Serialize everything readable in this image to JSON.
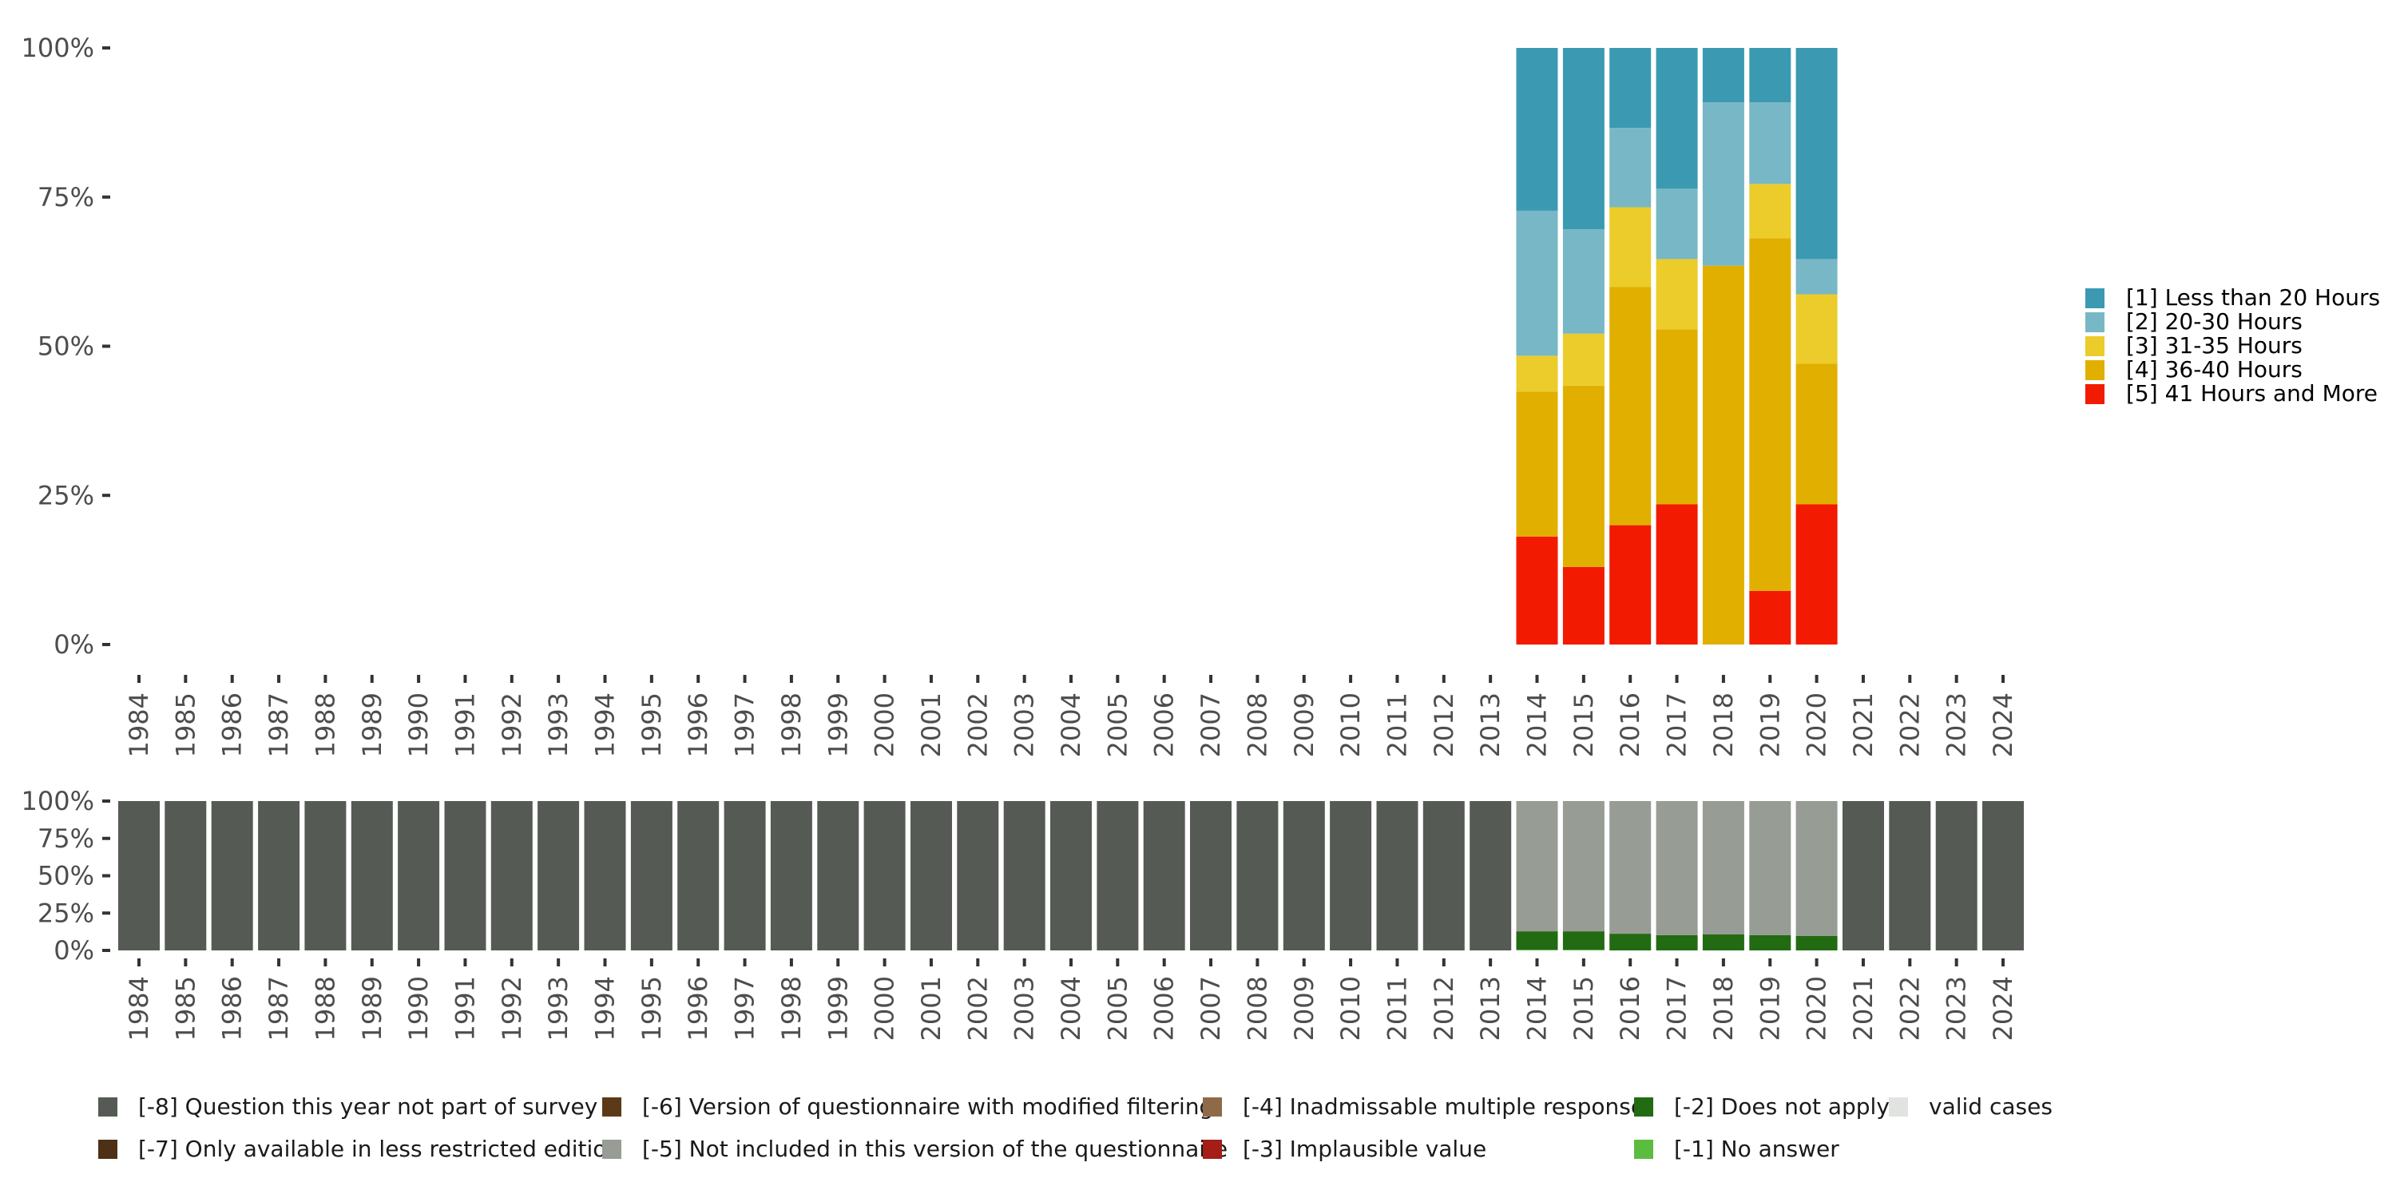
{
  "chart_data": [
    {
      "id": "main",
      "type": "bar",
      "stacked": true,
      "normalized": true,
      "title": "",
      "xlabel": "",
      "ylabel": "",
      "ylim": [
        0,
        100
      ],
      "y_ticks": [
        "0%",
        "25%",
        "50%",
        "75%",
        "100%"
      ],
      "y_tick_values": [
        0,
        25,
        50,
        75,
        100
      ],
      "grid": false,
      "legend_position": "right",
      "categories": [
        "1984",
        "1985",
        "1986",
        "1987",
        "1988",
        "1989",
        "1990",
        "1991",
        "1992",
        "1993",
        "1994",
        "1995",
        "1996",
        "1997",
        "1998",
        "1999",
        "2000",
        "2001",
        "2002",
        "2003",
        "2004",
        "2005",
        "2006",
        "2007",
        "2008",
        "2009",
        "2010",
        "2011",
        "2012",
        "2013",
        "2014",
        "2015",
        "2016",
        "2017",
        "2018",
        "2019",
        "2020",
        "2021",
        "2022",
        "2023",
        "2024"
      ],
      "series": [
        {
          "name": "[5] 41 Hours and More",
          "color": "#f21a00",
          "values": {
            "2014": 18.1,
            "2015": 13.0,
            "2016": 20.0,
            "2017": 23.5,
            "2018": 0.0,
            "2019": 9.0,
            "2020": 23.5
          }
        },
        {
          "name": "[4] 36-40 Hours",
          "color": "#e1af00",
          "values": {
            "2014": 24.3,
            "2015": 30.4,
            "2016": 39.9,
            "2017": 29.3,
            "2018": 63.5,
            "2019": 59.1,
            "2020": 23.6
          }
        },
        {
          "name": "[3] 31-35 Hours",
          "color": "#ebcc2a",
          "values": {
            "2014": 6.0,
            "2015": 8.7,
            "2016": 13.4,
            "2017": 11.8,
            "2018": 0.0,
            "2019": 9.1,
            "2020": 11.6
          }
        },
        {
          "name": "[2] 20-30 Hours",
          "color": "#78b7c5",
          "values": {
            "2014": 24.3,
            "2015": 17.5,
            "2016": 13.3,
            "2017": 11.8,
            "2018": 27.4,
            "2019": 13.7,
            "2020": 5.9
          }
        },
        {
          "name": "[1] Less than 20 Hours",
          "color": "#3b9ab2",
          "values": {
            "2014": 27.3,
            "2015": 30.4,
            "2016": 13.4,
            "2017": 23.6,
            "2018": 9.1,
            "2019": 9.1,
            "2020": 35.4
          }
        }
      ],
      "legend": [
        {
          "label": "[1] Less than 20 Hours",
          "color": "#3b9ab2"
        },
        {
          "label": "[2] 20-30 Hours",
          "color": "#78b7c5"
        },
        {
          "label": "[3] 31-35 Hours",
          "color": "#ebcc2a"
        },
        {
          "label": "[4] 36-40 Hours",
          "color": "#e1af00"
        },
        {
          "label": "[5] 41 Hours and More",
          "color": "#f21a00"
        }
      ]
    },
    {
      "id": "missing",
      "type": "bar",
      "stacked": true,
      "normalized": true,
      "title": "",
      "xlabel": "",
      "ylabel": "",
      "ylim": [
        0,
        100
      ],
      "y_ticks": [
        "0%",
        "25%",
        "50%",
        "75%",
        "100%"
      ],
      "y_tick_values": [
        0,
        25,
        50,
        75,
        100
      ],
      "grid": false,
      "legend_position": "bottom",
      "categories": [
        "1984",
        "1985",
        "1986",
        "1987",
        "1988",
        "1989",
        "1990",
        "1991",
        "1992",
        "1993",
        "1994",
        "1995",
        "1996",
        "1997",
        "1998",
        "1999",
        "2000",
        "2001",
        "2002",
        "2003",
        "2004",
        "2005",
        "2006",
        "2007",
        "2008",
        "2009",
        "2010",
        "2011",
        "2012",
        "2013",
        "2014",
        "2015",
        "2016",
        "2017",
        "2018",
        "2019",
        "2020",
        "2021",
        "2022",
        "2023",
        "2024"
      ],
      "series": [
        {
          "name": "[-1] No answer",
          "color": "#5bbc3f",
          "values": {
            "2014": 0.5,
            "2015": 0.5
          }
        },
        {
          "name": "[-2] Does not apply",
          "color": "#226b12",
          "values": {
            "2014": 12.3,
            "2015": 12.3,
            "2016": 11.2,
            "2017": 10.2,
            "2018": 10.7,
            "2019": 10.2,
            "2020": 9.6
          }
        },
        {
          "name": "[-5] Not included in this version of the questionnaire",
          "color": "#979c94",
          "values": {
            "2014": 87.2,
            "2015": 87.2,
            "2016": 88.8,
            "2017": 89.8,
            "2018": 89.3,
            "2019": 89.8,
            "2020": 90.4
          }
        },
        {
          "name": "[-8] Question this year not part of survey",
          "color": "#555b54",
          "values": {
            "1984": 100,
            "1985": 100,
            "1986": 100,
            "1987": 100,
            "1988": 100,
            "1989": 100,
            "1990": 100,
            "1991": 100,
            "1992": 100,
            "1993": 100,
            "1994": 100,
            "1995": 100,
            "1996": 100,
            "1997": 100,
            "1998": 100,
            "1999": 100,
            "2000": 100,
            "2001": 100,
            "2002": 100,
            "2003": 100,
            "2004": 100,
            "2005": 100,
            "2006": 100,
            "2007": 100,
            "2008": 100,
            "2009": 100,
            "2010": 100,
            "2011": 100,
            "2012": 100,
            "2013": 100,
            "2021": 100,
            "2022": 100,
            "2023": 100,
            "2024": 100
          }
        }
      ],
      "legend": [
        {
          "label": "[-8] Question this year not part of survey",
          "color": "#555b54"
        },
        {
          "label": "[-7] Only available in less restricted edition",
          "color": "#4e3017"
        },
        {
          "label": "[-6] Version of questionnaire with modified filtering",
          "color": "#5c3a17"
        },
        {
          "label": "[-5] Not included in this version of the questionnaire",
          "color": "#979c94"
        },
        {
          "label": "[-4] Inadmissable multiple response",
          "color": "#8f6a48"
        },
        {
          "label": "[-3] Implausible value",
          "color": "#a41d17"
        },
        {
          "label": "[-2] Does not apply",
          "color": "#226b12"
        },
        {
          "label": "[-1] No answer",
          "color": "#5bbc3f"
        },
        {
          "label": "valid cases",
          "color": "#e0e3df"
        }
      ]
    }
  ]
}
